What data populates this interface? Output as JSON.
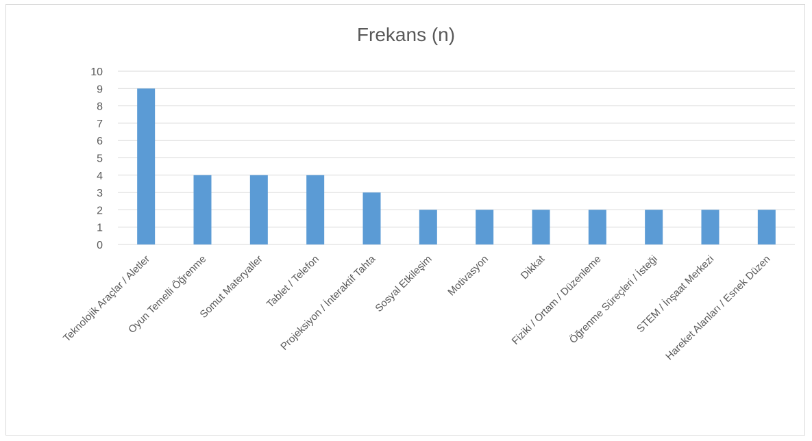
{
  "chart_data": {
    "type": "bar",
    "title": "Frekans (n)",
    "xlabel": "",
    "ylabel": "",
    "ylim": [
      0,
      10
    ],
    "yticks": [
      0,
      1,
      2,
      3,
      4,
      5,
      6,
      7,
      8,
      9,
      10
    ],
    "grid": true,
    "legend": "none",
    "bar_color": "#5b9bd5",
    "categories": [
      "Teknolojik Araçlar / Aletler",
      "Oyun Temelli Öğrenme",
      "Somut Materyaller",
      "Tablet / Telefon",
      "Projeksiyon / İnteraktif Tahta",
      "Sosyal Etkileşim",
      "Motivasyon",
      "Dikkat",
      "Fiziki / Ortam / Düzenleme",
      "Öğrenme Süreçleri / İsteği",
      "STEM / İnşaat Merkezi",
      "Hareket Alanları / Esnek Düzen"
    ],
    "values": [
      9,
      4,
      4,
      4,
      3,
      2,
      2,
      2,
      2,
      2,
      2,
      2
    ]
  }
}
